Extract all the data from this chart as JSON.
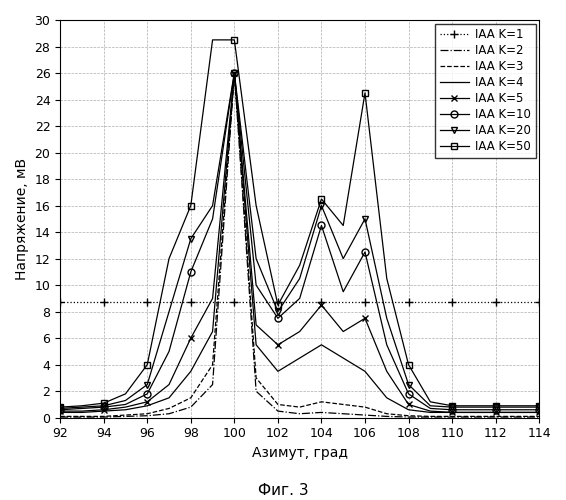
{
  "title": "",
  "xlabel": "Азимут, град",
  "ylabel": "Напряжение, мВ",
  "caption": "Фиг. 3",
  "xlim": [
    92,
    114
  ],
  "ylim": [
    0,
    30
  ],
  "xticks": [
    92,
    94,
    96,
    98,
    100,
    102,
    104,
    106,
    108,
    110,
    112,
    114
  ],
  "yticks": [
    0,
    2,
    4,
    6,
    8,
    10,
    12,
    14,
    16,
    18,
    20,
    22,
    24,
    26,
    28,
    30
  ],
  "x": [
    92,
    93,
    94,
    95,
    96,
    97,
    98,
    99,
    100,
    101,
    102,
    103,
    104,
    105,
    106,
    107,
    108,
    109,
    110,
    111,
    112,
    113,
    114
  ],
  "series": {
    "K1": {
      "label": "IAA K=1",
      "linestyle": "dotted",
      "marker": "+",
      "markersize": 6,
      "markevery": 2,
      "color": "#000000",
      "linewidth": 0.9,
      "y": [
        8.7,
        8.7,
        8.7,
        8.7,
        8.7,
        8.7,
        8.7,
        8.7,
        8.7,
        8.7,
        8.7,
        8.7,
        8.7,
        8.7,
        8.7,
        8.7,
        8.7,
        8.7,
        8.7,
        8.7,
        8.7,
        8.7,
        8.7
      ]
    },
    "K2": {
      "label": "IAA K=2",
      "linestyle": "dashdot",
      "marker": "None",
      "markersize": 0,
      "markevery": 1,
      "color": "#000000",
      "linewidth": 0.9,
      "y": [
        0.05,
        0.05,
        0.05,
        0.1,
        0.15,
        0.3,
        0.8,
        2.5,
        26.0,
        2.0,
        0.5,
        0.3,
        0.4,
        0.3,
        0.2,
        0.1,
        0.05,
        0.05,
        0.05,
        0.05,
        0.05,
        0.05,
        0.05
      ]
    },
    "K3": {
      "label": "IAA K=3",
      "linestyle": "dashed",
      "marker": "None",
      "markersize": 0,
      "markevery": 1,
      "color": "#000000",
      "linewidth": 0.9,
      "y": [
        0.1,
        0.1,
        0.1,
        0.2,
        0.3,
        0.7,
        1.5,
        4.0,
        26.0,
        3.0,
        1.0,
        0.8,
        1.2,
        1.0,
        0.8,
        0.3,
        0.15,
        0.1,
        0.1,
        0.1,
        0.1,
        0.1,
        0.1
      ]
    },
    "K4": {
      "label": "IAA K=4",
      "linestyle": "solid",
      "marker": "None",
      "markersize": 0,
      "markevery": 1,
      "color": "#000000",
      "linewidth": 0.9,
      "y": [
        0.4,
        0.4,
        0.5,
        0.6,
        0.9,
        1.5,
        3.5,
        6.5,
        26.0,
        5.5,
        3.5,
        4.5,
        5.5,
        4.5,
        3.5,
        1.5,
        0.6,
        0.4,
        0.4,
        0.4,
        0.4,
        0.4,
        0.4
      ]
    },
    "K5": {
      "label": "IAA K=5",
      "linestyle": "solid",
      "marker": "x",
      "markersize": 5,
      "markevery": 2,
      "color": "#000000",
      "linewidth": 0.9,
      "y": [
        0.5,
        0.5,
        0.6,
        0.8,
        1.2,
        2.5,
        6.0,
        9.0,
        26.0,
        7.0,
        5.5,
        6.5,
        8.5,
        6.5,
        7.5,
        3.5,
        1.0,
        0.5,
        0.4,
        0.4,
        0.4,
        0.4,
        0.4
      ]
    },
    "K10": {
      "label": "IAA K=10",
      "linestyle": "solid",
      "marker": "o",
      "markersize": 5,
      "markevery": 2,
      "color": "#000000",
      "linewidth": 0.9,
      "y": [
        0.6,
        0.7,
        0.8,
        1.0,
        1.8,
        5.0,
        11.0,
        15.0,
        26.0,
        10.0,
        7.5,
        9.0,
        14.5,
        9.5,
        12.5,
        5.5,
        1.8,
        0.7,
        0.6,
        0.6,
        0.6,
        0.6,
        0.6
      ]
    },
    "K20": {
      "label": "IAA K=20",
      "linestyle": "solid",
      "marker": "v",
      "markersize": 5,
      "markevery": 2,
      "color": "#000000",
      "linewidth": 0.9,
      "y": [
        0.7,
        0.8,
        0.9,
        1.3,
        2.5,
        8.0,
        13.5,
        16.0,
        26.0,
        12.0,
        8.0,
        10.5,
        16.0,
        12.0,
        15.0,
        7.5,
        2.5,
        0.9,
        0.8,
        0.8,
        0.8,
        0.8,
        0.8
      ]
    },
    "K50": {
      "label": "IAA K=50",
      "linestyle": "solid",
      "marker": "s",
      "markersize": 5,
      "markevery": 2,
      "color": "#000000",
      "linewidth": 0.9,
      "y": [
        0.8,
        0.9,
        1.1,
        1.8,
        4.0,
        12.0,
        16.0,
        28.5,
        28.5,
        16.0,
        8.5,
        11.5,
        16.5,
        14.5,
        24.5,
        10.5,
        4.0,
        1.2,
        0.9,
        0.9,
        0.9,
        0.9,
        0.9
      ]
    }
  },
  "background_color": "#ffffff",
  "legend_fontsize": 8.5,
  "axis_fontsize": 10,
  "tick_fontsize": 9
}
